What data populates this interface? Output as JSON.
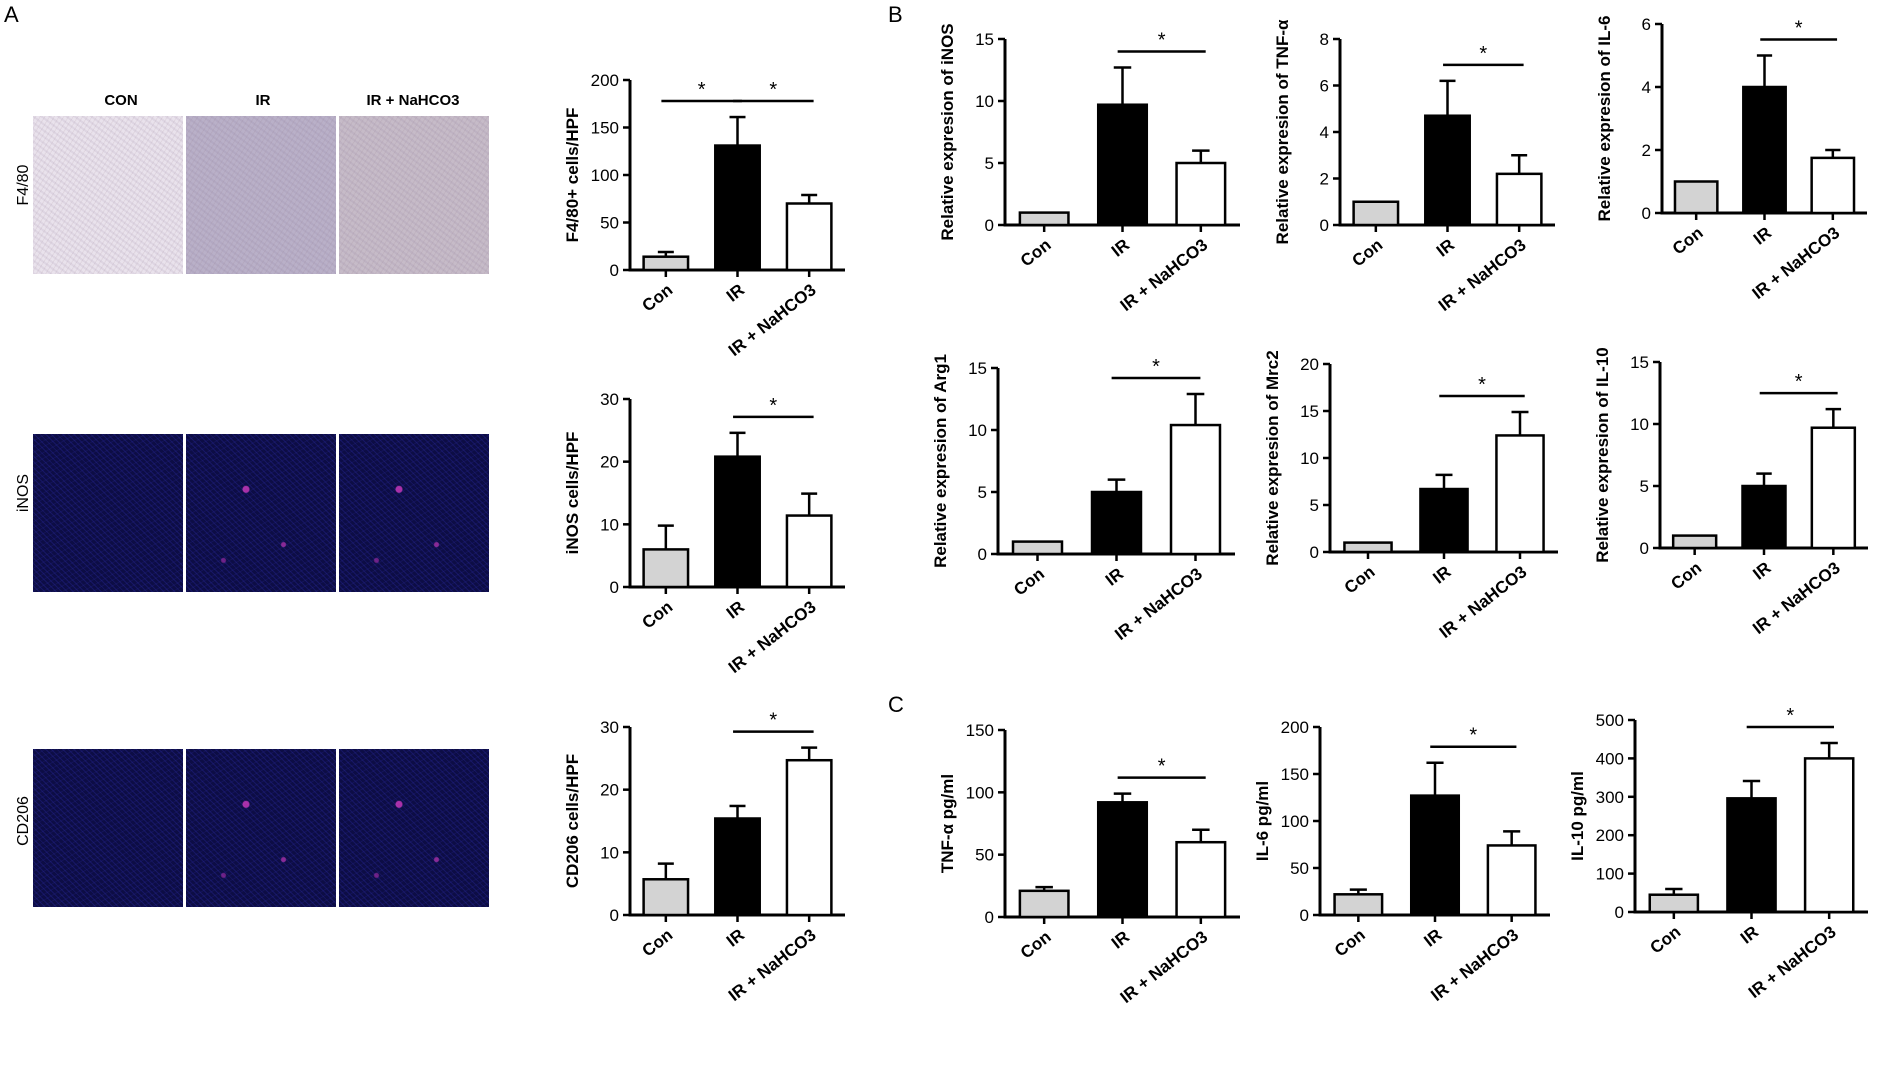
{
  "panels": {
    "a": "A",
    "b": "B",
    "c": "C"
  },
  "micrographs": {
    "columns": [
      "CON",
      "IR",
      "IR + NaHCO3"
    ],
    "rows": [
      {
        "label": "F4/80",
        "style": "ihc"
      },
      {
        "label": "iNOS",
        "style": "if"
      },
      {
        "label": "CD206",
        "style": "if"
      }
    ]
  },
  "colors": {
    "con": "#d3d3d3",
    "ir": "#000000",
    "nahco3": "#ffffff",
    "outline": "#000000"
  },
  "chart_data": [
    {
      "id": "f480",
      "type": "bar",
      "categories": [
        "Con",
        "IR",
        "IR + NaHCO3"
      ],
      "values": [
        14,
        131,
        70
      ],
      "errors": [
        5,
        30,
        9
      ],
      "ylabel": "F4/80+ cells/HPF",
      "ylim": [
        0,
        200
      ],
      "yticks": [
        0,
        50,
        100,
        150,
        200
      ],
      "sig": [
        {
          "from": 0,
          "to": 1,
          "label": "*"
        },
        {
          "from": 1,
          "to": 2,
          "label": "*"
        }
      ]
    },
    {
      "id": "inos_cells",
      "type": "bar",
      "categories": [
        "Con",
        "IR",
        "IR + NaHCO3"
      ],
      "values": [
        6,
        20.8,
        11.4
      ],
      "errors": [
        3.8,
        3.8,
        3.5
      ],
      "ylabel": "iNOS cells/HPF",
      "ylim": [
        0,
        30
      ],
      "yticks": [
        0,
        10,
        20,
        30
      ],
      "sig": [
        {
          "from": 1,
          "to": 2,
          "label": "*"
        }
      ]
    },
    {
      "id": "cd206_cells",
      "type": "bar",
      "categories": [
        "Con",
        "IR",
        "IR + NaHCO3"
      ],
      "values": [
        5.7,
        15.4,
        24.7
      ],
      "errors": [
        2.5,
        2,
        2
      ],
      "ylabel": "CD206 cells/HPF",
      "ylim": [
        0,
        30
      ],
      "yticks": [
        0,
        10,
        20,
        30
      ],
      "sig": [
        {
          "from": 1,
          "to": 2,
          "label": "*"
        }
      ]
    },
    {
      "id": "rel_inos",
      "type": "bar",
      "categories": [
        "Con",
        "IR",
        "IR + NaHCO3"
      ],
      "values": [
        1,
        9.7,
        5
      ],
      "errors": [
        0,
        3,
        1
      ],
      "ylabel": "Relative expresion of iNOS",
      "ylim": [
        0,
        15
      ],
      "yticks": [
        0,
        5,
        10,
        15
      ],
      "sig": [
        {
          "from": 1,
          "to": 2,
          "label": "*"
        }
      ]
    },
    {
      "id": "rel_tnfa",
      "type": "bar",
      "categories": [
        "Con",
        "IR",
        "IR + NaHCO3"
      ],
      "values": [
        1,
        4.7,
        2.2
      ],
      "errors": [
        0,
        1.5,
        0.8
      ],
      "ylabel": "Relative expresion of TNF-α",
      "ylim": [
        0,
        8
      ],
      "yticks": [
        0,
        2,
        4,
        6,
        8
      ],
      "sig": [
        {
          "from": 1,
          "to": 2,
          "label": "*"
        }
      ]
    },
    {
      "id": "rel_il6",
      "type": "bar",
      "categories": [
        "Con",
        "IR",
        "IR + NaHCO3"
      ],
      "values": [
        1,
        4,
        1.75
      ],
      "errors": [
        0,
        1,
        0.25
      ],
      "ylabel": "Relative expresion of IL-6",
      "ylim": [
        0,
        6
      ],
      "yticks": [
        0,
        2,
        4,
        6
      ],
      "sig": [
        {
          "from": 1,
          "to": 2,
          "label": "*"
        }
      ]
    },
    {
      "id": "rel_arg1",
      "type": "bar",
      "categories": [
        "Con",
        "IR",
        "IR + NaHCO3"
      ],
      "values": [
        1,
        5,
        10.4
      ],
      "errors": [
        0,
        1,
        2.5
      ],
      "ylabel": "Relative expresion of Arg1",
      "ylim": [
        0,
        15
      ],
      "yticks": [
        0,
        5,
        10,
        15
      ],
      "sig": [
        {
          "from": 1,
          "to": 2,
          "label": "*"
        }
      ]
    },
    {
      "id": "rel_mrc2",
      "type": "bar",
      "categories": [
        "Con",
        "IR",
        "IR + NaHCO3"
      ],
      "values": [
        1,
        6.7,
        12.4
      ],
      "errors": [
        0,
        1.5,
        2.5
      ],
      "ylabel": "Relative expresion of Mrc2",
      "ylim": [
        0,
        20
      ],
      "yticks": [
        0,
        5,
        10,
        15,
        20
      ],
      "sig": [
        {
          "from": 1,
          "to": 2,
          "label": "*"
        }
      ]
    },
    {
      "id": "rel_il10",
      "type": "bar",
      "categories": [
        "Con",
        "IR",
        "IR + NaHCO3"
      ],
      "values": [
        1,
        5,
        9.7
      ],
      "errors": [
        0,
        1,
        1.5
      ],
      "ylabel": "Relative expresion of IL-10",
      "ylim": [
        0,
        15
      ],
      "yticks": [
        0,
        5,
        10,
        15
      ],
      "sig": [
        {
          "from": 1,
          "to": 2,
          "label": "*"
        }
      ]
    },
    {
      "id": "serum_tnfa",
      "type": "bar",
      "categories": [
        "Con",
        "IR",
        "IR + NaHCO3"
      ],
      "values": [
        21,
        92,
        60
      ],
      "errors": [
        3,
        7,
        10
      ],
      "ylabel": "TNF-α  pg/ml",
      "ylim": [
        0,
        150
      ],
      "yticks": [
        0,
        50,
        100,
        150
      ],
      "sig": [
        {
          "from": 1,
          "to": 2,
          "label": "*"
        }
      ]
    },
    {
      "id": "serum_il6",
      "type": "bar",
      "categories": [
        "Con",
        "IR",
        "IR + NaHCO3"
      ],
      "values": [
        22,
        127,
        74
      ],
      "errors": [
        5,
        35,
        15
      ],
      "ylabel": "IL-6  pg/ml",
      "ylim": [
        0,
        200
      ],
      "yticks": [
        0,
        50,
        100,
        150,
        200
      ],
      "sig": [
        {
          "from": 1,
          "to": 2,
          "label": "*"
        }
      ]
    },
    {
      "id": "serum_il10",
      "type": "bar",
      "categories": [
        "Con",
        "IR",
        "IR + NaHCO3"
      ],
      "values": [
        45,
        296,
        400
      ],
      "errors": [
        15,
        45,
        40
      ],
      "ylabel": "IL-10  pg/ml",
      "ylim": [
        0,
        500
      ],
      "yticks": [
        0,
        100,
        200,
        300,
        400,
        500
      ],
      "sig": [
        {
          "from": 1,
          "to": 2,
          "label": "*"
        }
      ]
    }
  ]
}
